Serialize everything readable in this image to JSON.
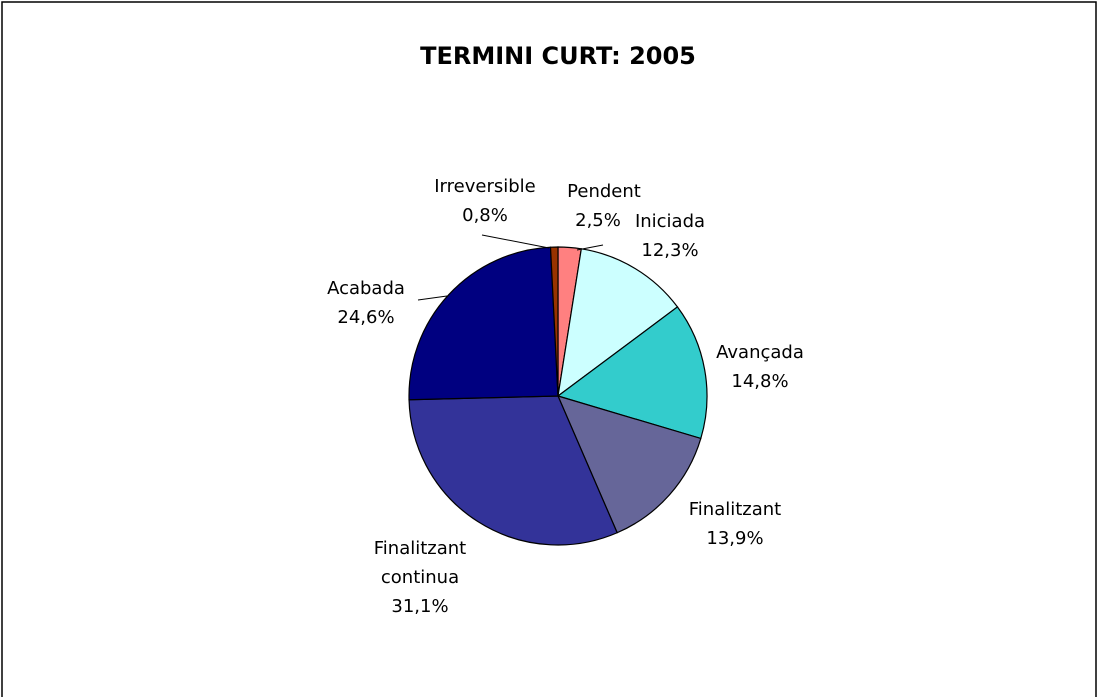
{
  "chart_data": {
    "type": "pie",
    "title": "TERMINI CURT: 2005",
    "categories": [
      "Pendent",
      "Iniciada",
      "Avançada",
      "Finalitzant",
      "Finalitzant continua",
      "Acabada",
      "Irreversible"
    ],
    "values": [
      2.5,
      12.3,
      14.8,
      13.9,
      31.1,
      24.6,
      0.8
    ],
    "value_labels": [
      "2,5%",
      "12,3%",
      "14,8%",
      "13,9%",
      "31,1%",
      "24,6%",
      "0,8%"
    ],
    "colors": [
      "#ff8080",
      "#ccffff",
      "#33cccc",
      "#666699",
      "#333399",
      "#000080",
      "#993300"
    ]
  }
}
